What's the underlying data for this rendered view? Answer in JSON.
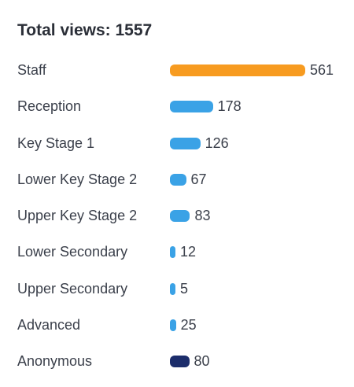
{
  "header": {
    "title": "Total views: 1557"
  },
  "colors": {
    "default_bar": "#3aa2e6"
  },
  "chart_data": {
    "type": "bar",
    "orientation": "horizontal",
    "title": "Total views: 1557",
    "categories": [
      "Staff",
      "Reception",
      "Key Stage 1",
      "Lower Key Stage 2",
      "Upper Key Stage 2",
      "Lower Secondary",
      "Upper Secondary",
      "Advanced",
      "Anonymous"
    ],
    "values": [
      561,
      178,
      126,
      67,
      83,
      12,
      5,
      25,
      80
    ],
    "bar_colors": [
      "#f79b20",
      "#3aa2e6",
      "#3aa2e6",
      "#3aa2e6",
      "#3aa2e6",
      "#3aa2e6",
      "#3aa2e6",
      "#3aa2e6",
      "#1c2d6b"
    ],
    "xlim": [
      0,
      561
    ],
    "grid": false,
    "legend": "none"
  }
}
